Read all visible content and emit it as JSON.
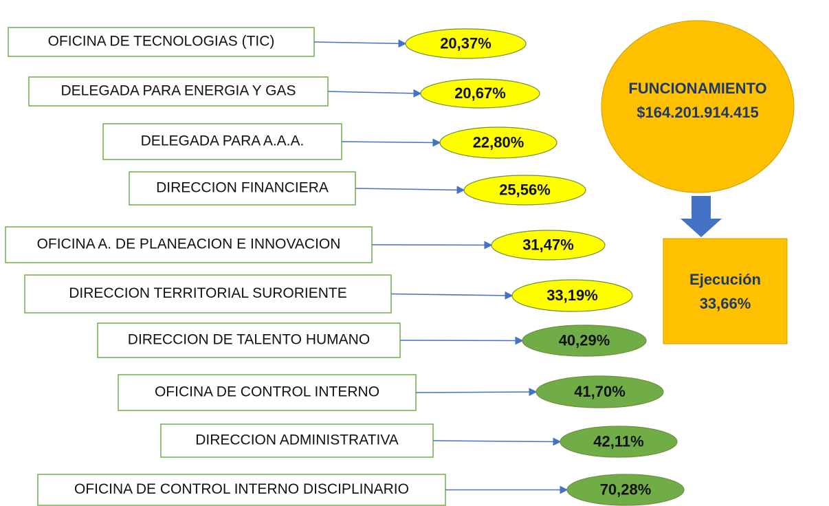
{
  "rows": [
    {
      "label": "OFICINA DE TECNOLOGIAS (TIC)",
      "value": "20,37%",
      "color": "#ffff00"
    },
    {
      "label": "DELEGADA PARA ENERGIA Y GAS",
      "value": "20,67%",
      "color": "#ffff00"
    },
    {
      "label": "DELEGADA PARA A.A.A.",
      "value": "22,80%",
      "color": "#ffff00"
    },
    {
      "label": "DIRECCION FINANCIERA",
      "value": "25,56%",
      "color": "#ffff00"
    },
    {
      "label": "OFICINA A. DE PLANEACION E INNOVACION",
      "value": "31,47%",
      "color": "#ffff00"
    },
    {
      "label": "DIRECCION TERRITORIAL SURORIENTE",
      "value": "33,19%",
      "color": "#ffff00"
    },
    {
      "label": "DIRECCION DE TALENTO HUMANO",
      "value": "40,29%",
      "color": "#70ad47"
    },
    {
      "label": "OFICINA DE CONTROL INTERNO",
      "value": "41,70%",
      "color": "#70ad47"
    },
    {
      "label": "DIRECCION ADMINISTRATIVA",
      "value": "42,11%",
      "color": "#70ad47"
    },
    {
      "label": "OFICINA DE CONTROL INTERNO DISCIPLINARIO",
      "value": "70,28%",
      "color": "#70ad47"
    }
  ],
  "summary": {
    "title": "FUNCIONAMIENTO",
    "amount": "$164.201.914.415",
    "execution_label": "Ejecución",
    "execution_value": "33,66%"
  }
}
